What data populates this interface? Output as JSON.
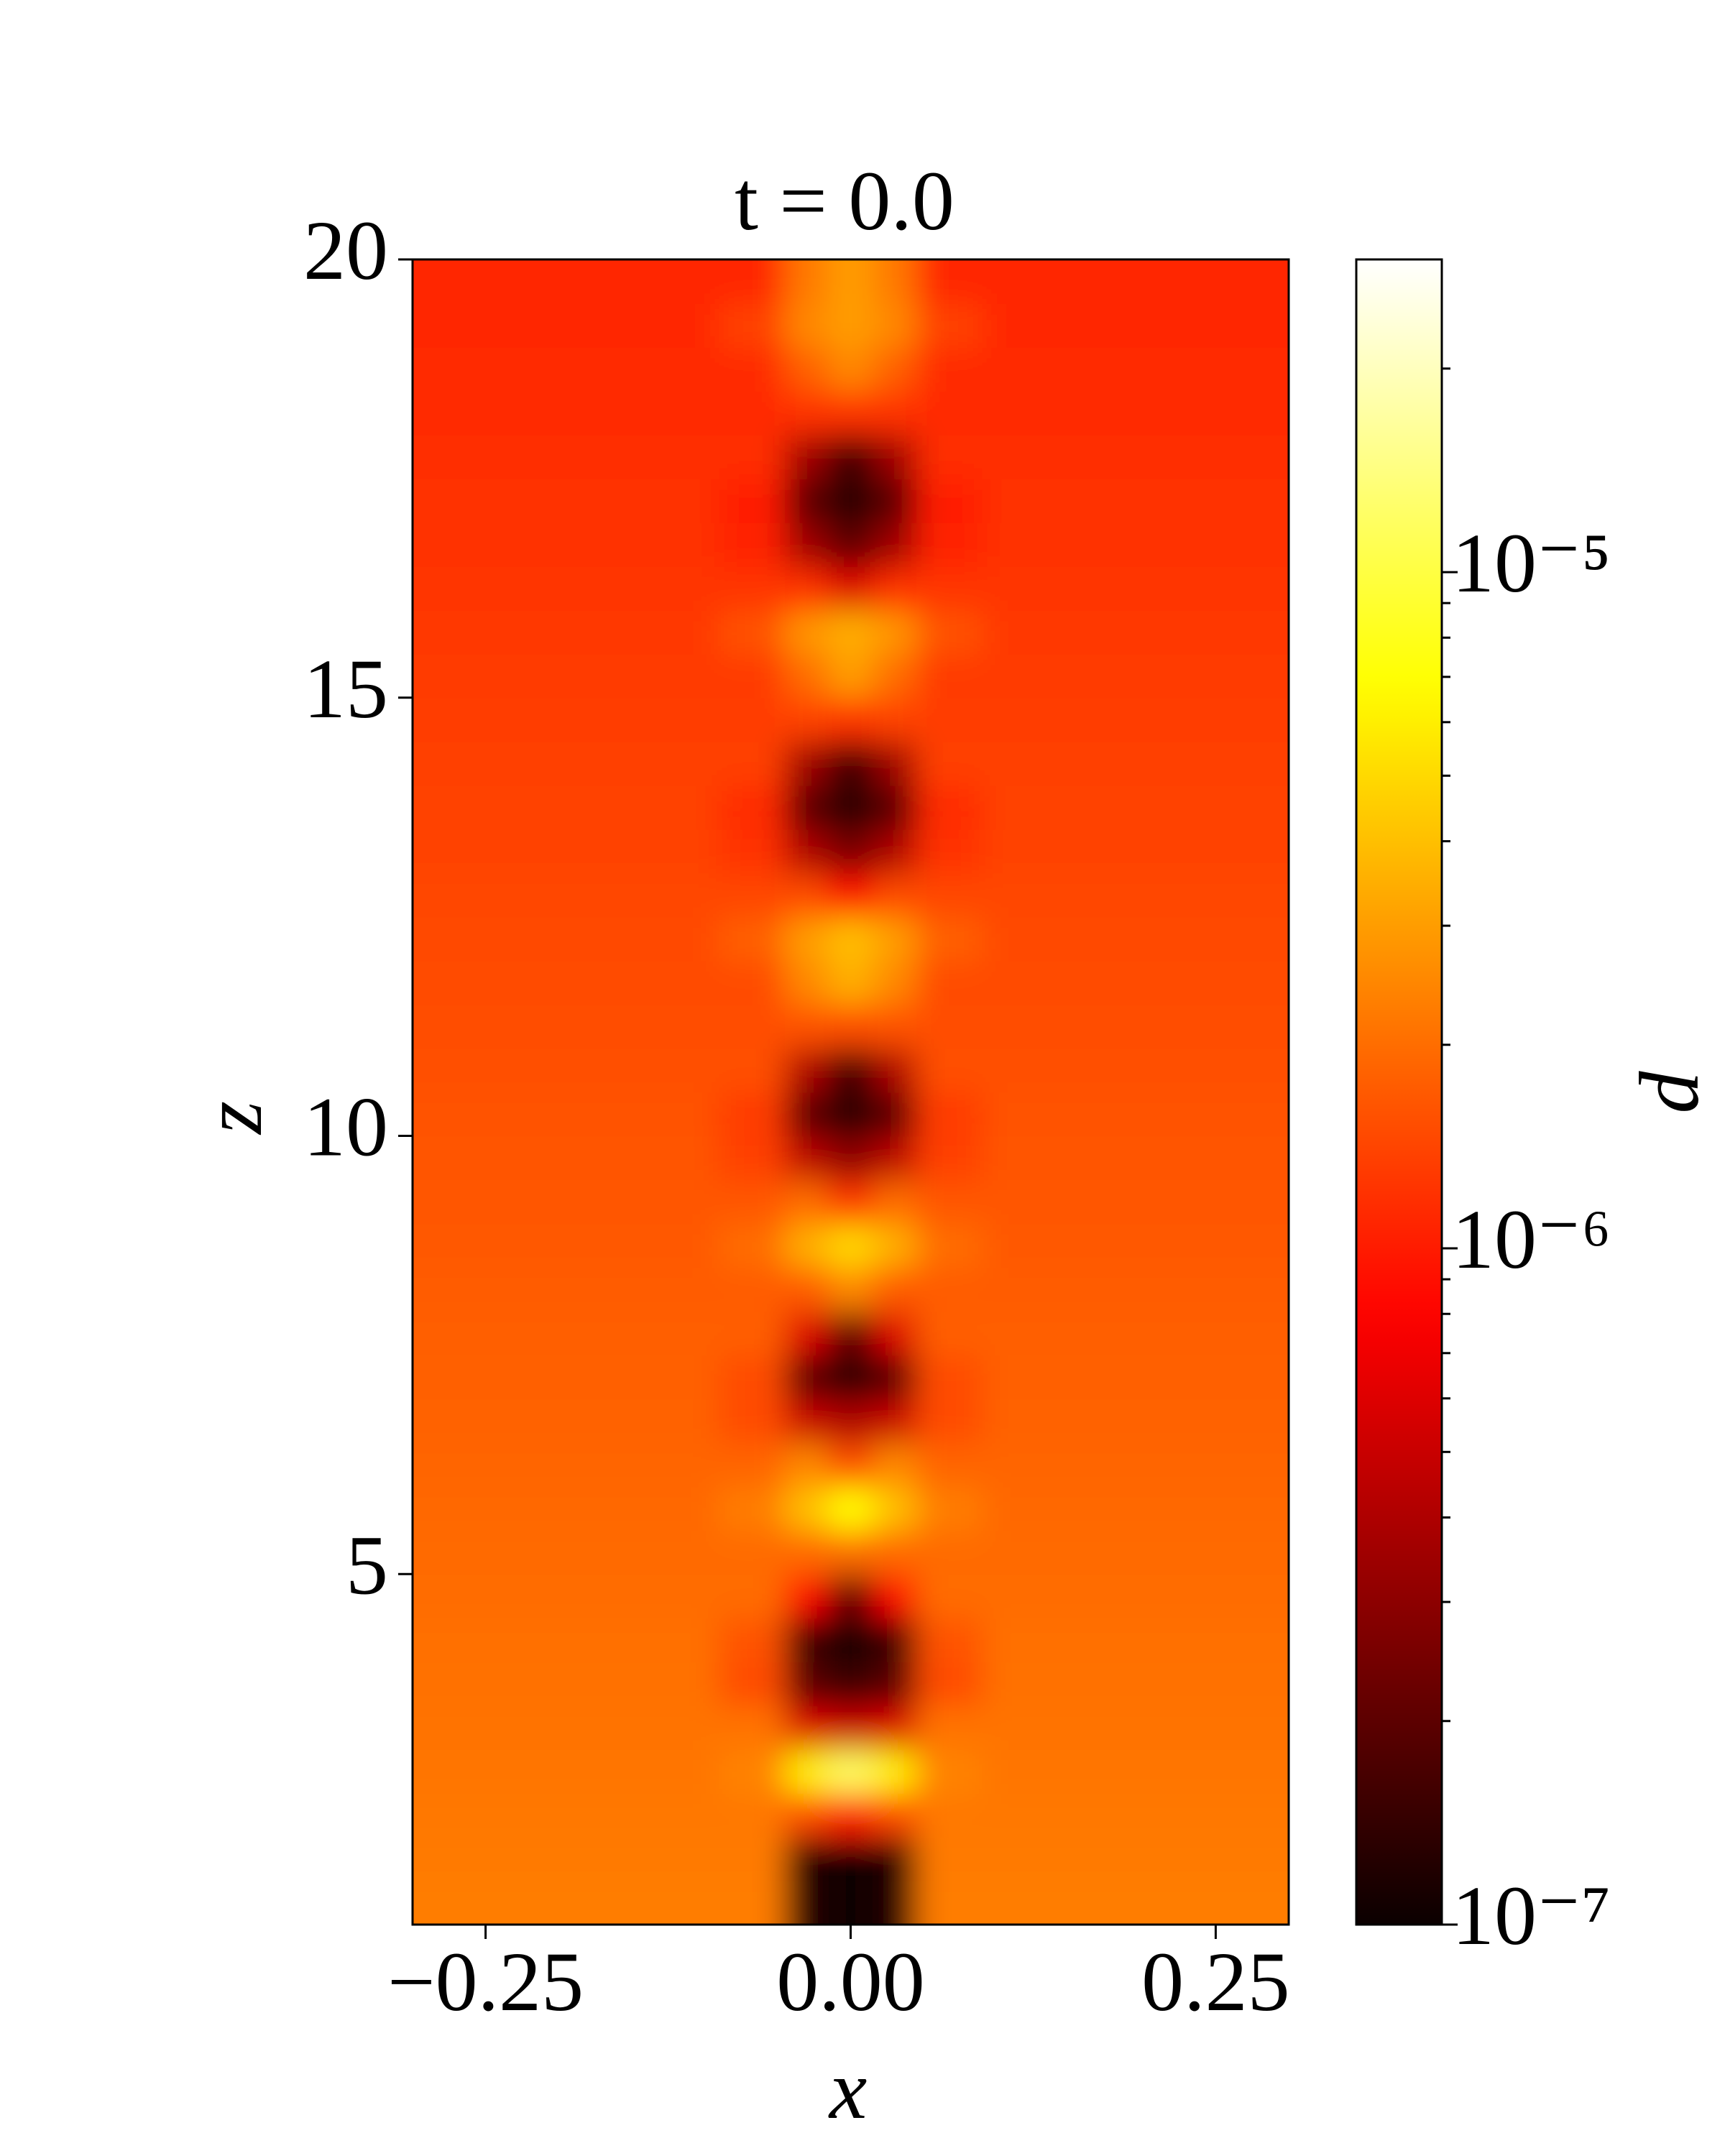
{
  "chart_data": {
    "type": "heatmap",
    "title": "t = 0.0",
    "xlabel": "x",
    "ylabel": "z",
    "colormap": "hot",
    "x": [
      -0.25,
      -0.12,
      -0.06,
      -0.03,
      0,
      0.03,
      0.06,
      0.12,
      0.25
    ],
    "y": [
      1.25,
      1.75,
      2.25,
      2.75,
      3.25,
      3.75,
      4.25,
      4.75,
      5.25,
      5.75,
      6.25,
      6.75,
      7.25,
      7.75,
      8.25,
      8.75,
      9.25,
      9.75,
      10.25,
      10.75,
      11.25,
      11.75,
      12.25,
      12.75,
      13.25,
      13.75,
      14.25,
      14.75,
      15.25,
      15.75,
      16.25,
      16.75,
      17.25,
      17.75,
      18.25,
      18.75,
      19.25,
      19.75
    ],
    "values": [
      [
        2.28e-06,
        2.28e-06,
        2.28e-06,
        1.2e-07,
        1e-07,
        1.2e-07,
        2.28e-06,
        2.28e-06,
        2.28e-06
      ],
      [
        2.23e-06,
        2.23e-06,
        2.23e-06,
        1.2e-07,
        1e-07,
        1.2e-07,
        2.23e-06,
        2.23e-06,
        2.23e-06
      ],
      [
        2.19e-06,
        2.19e-06,
        2.19e-06,
        1.5e-06,
        1e-06,
        1.5e-06,
        2.19e-06,
        2.19e-06,
        2.19e-06
      ],
      [
        2.14e-06,
        2.14e-06,
        2.4e-06,
        6e-06,
        1.2e-05,
        6e-06,
        2.4e-06,
        2.14e-06,
        2.14e-06
      ],
      [
        2.1e-06,
        2.1e-06,
        2.1e-06,
        6e-07,
        5e-07,
        6e-07,
        2.1e-06,
        2.1e-06,
        2.1e-06
      ],
      [
        2.06e-06,
        2.06e-06,
        1.5e-06,
        2e-07,
        1.5e-07,
        2e-07,
        1.5e-06,
        2.06e-06,
        2.06e-06
      ],
      [
        2.02e-06,
        2.02e-06,
        1.6e-06,
        1.5e-07,
        1e-07,
        1.5e-07,
        1.6e-06,
        2.02e-06,
        2.02e-06
      ],
      [
        1.98e-06,
        1.98e-06,
        1.98e-06,
        8e-07,
        2e-07,
        8e-07,
        1.98e-06,
        1.98e-06,
        1.98e-06
      ],
      [
        1.94e-06,
        1.94e-06,
        1.94e-06,
        1.94e-06,
        2e-06,
        1.94e-06,
        1.94e-06,
        1.94e-06,
        1.94e-06
      ],
      [
        1.9e-06,
        1.9e-06,
        2.3e-06,
        4e-06,
        7e-06,
        4e-06,
        2.3e-06,
        1.9e-06,
        1.9e-06
      ],
      [
        1.86e-06,
        1.86e-06,
        1.86e-06,
        2.5e-06,
        1.5e-06,
        2.5e-06,
        1.86e-06,
        1.86e-06,
        1.86e-06
      ],
      [
        1.82e-06,
        1.82e-06,
        1.5e-06,
        5e-07,
        4e-07,
        5e-07,
        1.5e-06,
        1.82e-06,
        1.82e-06
      ],
      [
        1.79e-06,
        1.79e-06,
        1.5e-06,
        2e-07,
        1.2e-07,
        2e-07,
        1.5e-06,
        1.79e-06,
        1.79e-06
      ],
      [
        1.75e-06,
        1.75e-06,
        1.75e-06,
        6e-07,
        2e-07,
        6e-07,
        1.75e-06,
        1.75e-06,
        1.75e-06
      ],
      [
        1.72e-06,
        1.72e-06,
        1.72e-06,
        1.72e-06,
        2.5e-06,
        1.72e-06,
        1.72e-06,
        1.72e-06,
        1.72e-06
      ],
      [
        1.68e-06,
        1.68e-06,
        2e-06,
        3.5e-06,
        5e-06,
        3.5e-06,
        2e-06,
        1.68e-06,
        1.68e-06
      ],
      [
        1.65e-06,
        1.65e-06,
        1.65e-06,
        2e-06,
        1.2e-06,
        2e-06,
        1.65e-06,
        1.65e-06,
        1.65e-06
      ],
      [
        1.62e-06,
        1.62e-06,
        1.35e-06,
        4.5e-07,
        3e-07,
        4.5e-07,
        1.35e-06,
        1.62e-06,
        1.62e-06
      ],
      [
        1.58e-06,
        1.58e-06,
        1.3e-06,
        2e-07,
        1.2e-07,
        2e-07,
        1.3e-06,
        1.58e-06,
        1.58e-06
      ],
      [
        1.55e-06,
        1.55e-06,
        1.55e-06,
        4e-07,
        1.5e-07,
        4e-07,
        1.55e-06,
        1.55e-06,
        1.55e-06
      ],
      [
        1.52e-06,
        1.52e-06,
        1.52e-06,
        1.6e-06,
        1.5e-06,
        1.6e-06,
        1.52e-06,
        1.52e-06,
        1.52e-06
      ],
      [
        1.49e-06,
        1.49e-06,
        1.49e-06,
        2.5e-06,
        3.5e-06,
        2.5e-06,
        1.49e-06,
        1.49e-06,
        1.49e-06
      ],
      [
        1.46e-06,
        1.46e-06,
        1.8e-06,
        3e-06,
        4e-06,
        3e-06,
        1.8e-06,
        1.46e-06,
        1.46e-06
      ],
      [
        1.43e-06,
        1.43e-06,
        1.43e-06,
        1.5e-06,
        8e-07,
        1.5e-06,
        1.43e-06,
        1.43e-06,
        1.43e-06
      ],
      [
        1.4e-06,
        1.4e-06,
        1.2e-06,
        4e-07,
        2.5e-07,
        4e-07,
        1.2e-06,
        1.4e-06,
        1.4e-06
      ],
      [
        1.38e-06,
        1.38e-06,
        1.15e-06,
        2e-07,
        1.2e-07,
        2e-07,
        1.15e-06,
        1.38e-06,
        1.38e-06
      ],
      [
        1.35e-06,
        1.35e-06,
        1.35e-06,
        3.5e-07,
        1.5e-07,
        3.5e-07,
        1.35e-06,
        1.35e-06,
        1.35e-06
      ],
      [
        1.32e-06,
        1.32e-06,
        1.32e-06,
        1.4e-06,
        1.2e-06,
        1.4e-06,
        1.32e-06,
        1.32e-06,
        1.32e-06
      ],
      [
        1.3e-06,
        1.3e-06,
        1.3e-06,
        2e-06,
        3e-06,
        2e-06,
        1.3e-06,
        1.3e-06,
        1.3e-06
      ],
      [
        1.27e-06,
        1.27e-06,
        1.6e-06,
        2.8e-06,
        3.5e-06,
        2.8e-06,
        1.6e-06,
        1.27e-06,
        1.27e-06
      ],
      [
        1.25e-06,
        1.25e-06,
        1.25e-06,
        1.2e-06,
        6e-07,
        1.2e-06,
        1.25e-06,
        1.25e-06,
        1.25e-06
      ],
      [
        1.22e-06,
        1.22e-06,
        1.05e-06,
        3.5e-07,
        2e-07,
        3.5e-07,
        1.05e-06,
        1.22e-06,
        1.22e-06
      ],
      [
        1.2e-06,
        1.2e-06,
        1e-06,
        2e-07,
        1.2e-07,
        2e-07,
        1e-06,
        1.2e-06,
        1.2e-06
      ],
      [
        1.17e-06,
        1.17e-06,
        1.17e-06,
        3.5e-07,
        1.5e-07,
        3.5e-07,
        1.17e-06,
        1.17e-06,
        1.17e-06
      ],
      [
        1.15e-06,
        1.15e-06,
        1.15e-06,
        1.2e-06,
        1.2e-06,
        1.2e-06,
        1.15e-06,
        1.15e-06,
        1.15e-06
      ],
      [
        1.13e-06,
        1.13e-06,
        1.13e-06,
        1.8e-06,
        2.5e-06,
        1.8e-06,
        1.13e-06,
        1.13e-06,
        1.13e-06
      ],
      [
        1.11e-06,
        1.11e-06,
        1.4e-06,
        2.5e-06,
        3e-06,
        2.5e-06,
        1.4e-06,
        1.11e-06,
        1.11e-06
      ],
      [
        1.08e-06,
        1.08e-06,
        1.08e-06,
        2.2e-06,
        3e-06,
        2.2e-06,
        1.08e-06,
        1.08e-06,
        1.08e-06
      ]
    ],
    "xlim": [
      -0.3,
      0.3
    ],
    "xticks": [
      {
        "value": -0.25,
        "label": "−0.25"
      },
      {
        "value": 0,
        "label": "0.00"
      },
      {
        "value": 0.25,
        "label": "0.25"
      }
    ],
    "ylim": [
      1,
      20
    ],
    "yticks": [
      5,
      10,
      15,
      20
    ],
    "colorbar": {
      "label": "d",
      "scale": "log",
      "clim": [
        1e-07,
        2.9e-05
      ],
      "ticks": [
        {
          "value": 1e-07,
          "label": "10⁻⁷"
        },
        {
          "value": 1e-06,
          "label": "10⁻⁶"
        },
        {
          "value": 1e-05,
          "label": "10⁻⁵"
        }
      ],
      "minor_ticks": [
        2e-07,
        3e-07,
        4e-07,
        5e-07,
        6e-07,
        7e-07,
        8e-07,
        9e-07,
        2e-06,
        3e-06,
        4e-06,
        5e-06,
        6e-06,
        7e-06,
        8e-06,
        9e-06,
        2e-05
      ]
    }
  }
}
